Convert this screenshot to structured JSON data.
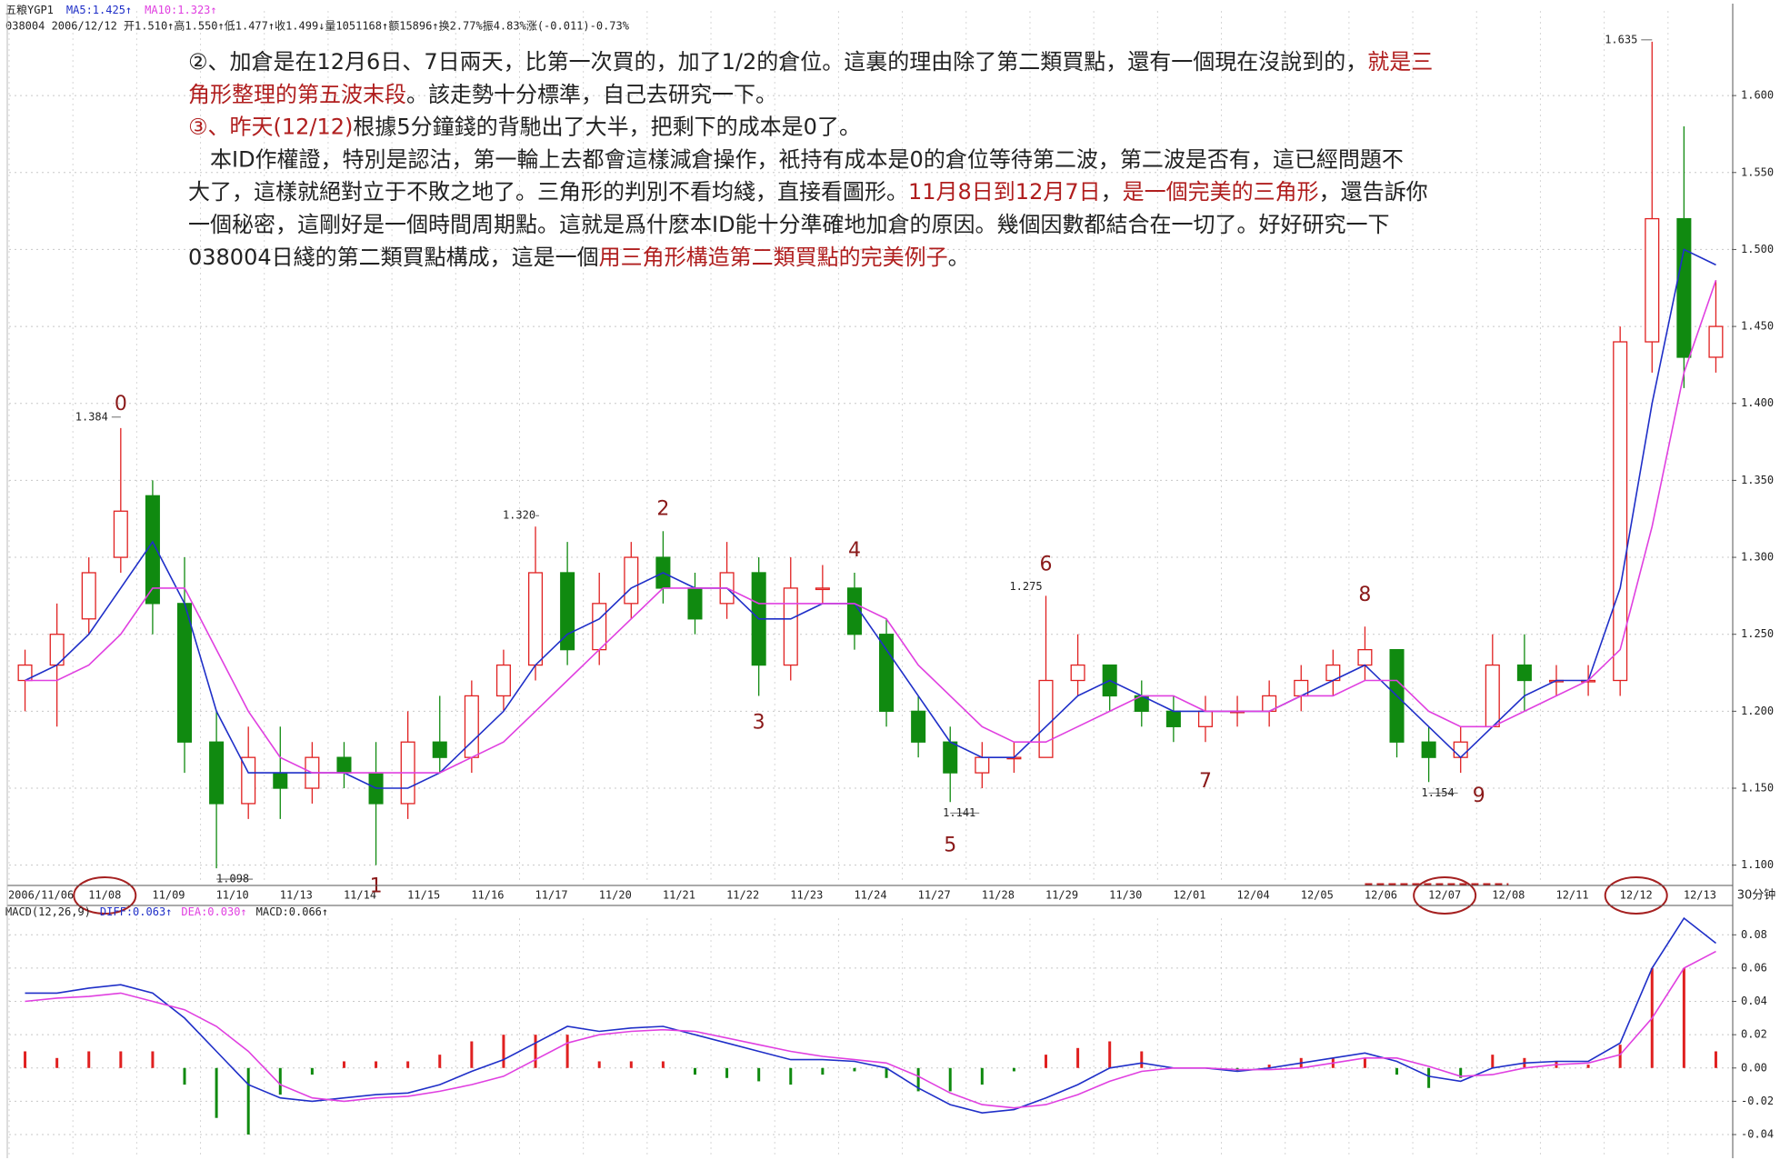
{
  "chart_data": [
    {
      "type": "candlestick",
      "title": "五粮YGP1",
      "info": "038004 2006/12/12 开1.510↑高1.550↑低1.477↑收1.499↓量1051168↑额15896↑换2.77%振4.83%涨(-0.011)-0.73%",
      "period": "30分钟",
      "up_color": "#e02020",
      "down_color": "#108a10",
      "categories": [
        "2006/11/06",
        null,
        "11/08",
        null,
        "11/09",
        null,
        "11/10",
        null,
        "11/13",
        null,
        "11/14",
        null,
        "11/15",
        null,
        "11/16",
        null,
        "11/17",
        null,
        "11/20",
        null,
        "11/21",
        null,
        "11/22",
        null,
        "11/23",
        null,
        "11/24",
        null,
        "11/27",
        null,
        "11/28",
        null,
        "11/29",
        null,
        "11/30",
        null,
        "12/01",
        null,
        "12/04",
        null,
        "12/05",
        null,
        "12/06",
        null,
        "12/07",
        null,
        "12/08",
        null,
        "12/11",
        null,
        "12/12",
        null,
        "12/13",
        null
      ],
      "open": [
        1.22,
        1.23,
        1.26,
        1.3,
        1.34,
        1.27,
        1.18,
        1.14,
        1.16,
        1.15,
        1.17,
        1.16,
        1.14,
        1.18,
        1.17,
        1.21,
        1.23,
        1.29,
        1.24,
        1.27,
        1.3,
        1.28,
        1.27,
        1.29,
        1.23,
        1.28,
        1.28,
        1.25,
        1.2,
        1.18,
        1.16,
        1.17,
        1.17,
        1.22,
        1.23,
        1.21,
        1.2,
        1.19,
        1.2,
        1.2,
        1.21,
        1.22,
        1.23,
        1.24,
        1.18,
        1.17,
        1.19,
        1.23,
        1.22,
        1.22,
        1.22,
        1.44,
        1.52,
        1.43
      ],
      "high": [
        1.24,
        1.27,
        1.3,
        1.384,
        1.35,
        1.3,
        1.2,
        1.19,
        1.19,
        1.18,
        1.18,
        1.18,
        1.2,
        1.21,
        1.22,
        1.24,
        1.32,
        1.31,
        1.29,
        1.31,
        1.317,
        1.29,
        1.31,
        1.3,
        1.3,
        1.295,
        1.29,
        1.26,
        1.21,
        1.19,
        1.18,
        1.18,
        1.275,
        1.25,
        1.23,
        1.22,
        1.21,
        1.21,
        1.21,
        1.22,
        1.23,
        1.24,
        1.255,
        1.24,
        1.19,
        1.19,
        1.25,
        1.25,
        1.23,
        1.23,
        1.45,
        1.635,
        1.58,
        1.48
      ],
      "low": [
        1.2,
        1.19,
        1.25,
        1.29,
        1.25,
        1.16,
        1.098,
        1.13,
        1.13,
        1.14,
        1.15,
        1.1,
        1.13,
        1.16,
        1.16,
        1.2,
        1.22,
        1.23,
        1.23,
        1.26,
        1.27,
        1.25,
        1.26,
        1.21,
        1.22,
        1.27,
        1.24,
        1.19,
        1.17,
        1.141,
        1.15,
        1.16,
        1.17,
        1.21,
        1.2,
        1.19,
        1.18,
        1.18,
        1.19,
        1.19,
        1.2,
        1.21,
        1.22,
        1.17,
        1.154,
        1.16,
        1.19,
        1.2,
        1.21,
        1.21,
        1.21,
        1.42,
        1.41,
        1.42
      ],
      "close": [
        1.23,
        1.25,
        1.29,
        1.33,
        1.27,
        1.18,
        1.14,
        1.17,
        1.15,
        1.17,
        1.16,
        1.14,
        1.18,
        1.17,
        1.21,
        1.23,
        1.29,
        1.24,
        1.27,
        1.3,
        1.28,
        1.26,
        1.29,
        1.23,
        1.28,
        1.28,
        1.25,
        1.2,
        1.18,
        1.16,
        1.17,
        1.17,
        1.22,
        1.23,
        1.21,
        1.2,
        1.19,
        1.2,
        1.2,
        1.21,
        1.22,
        1.23,
        1.24,
        1.18,
        1.17,
        1.18,
        1.23,
        1.22,
        1.22,
        1.22,
        1.44,
        1.52,
        1.43,
        1.45
      ],
      "series": [
        {
          "name": "MA5:1.425↑",
          "color": "#1f2fc8",
          "values": [
            1.22,
            1.23,
            1.25,
            1.28,
            1.31,
            1.27,
            1.2,
            1.16,
            1.16,
            1.16,
            1.16,
            1.15,
            1.15,
            1.16,
            1.18,
            1.2,
            1.23,
            1.25,
            1.26,
            1.28,
            1.29,
            1.28,
            1.28,
            1.26,
            1.26,
            1.27,
            1.27,
            1.24,
            1.21,
            1.18,
            1.17,
            1.17,
            1.19,
            1.21,
            1.22,
            1.21,
            1.2,
            1.2,
            1.2,
            1.2,
            1.21,
            1.22,
            1.23,
            1.21,
            1.19,
            1.17,
            1.19,
            1.21,
            1.22,
            1.22,
            1.28,
            1.4,
            1.5,
            1.49
          ]
        },
        {
          "name": "MA10:1.323↑",
          "color": "#e040e0",
          "values": [
            1.22,
            1.22,
            1.23,
            1.25,
            1.28,
            1.28,
            1.24,
            1.2,
            1.17,
            1.16,
            1.16,
            1.16,
            1.16,
            1.16,
            1.17,
            1.18,
            1.2,
            1.22,
            1.24,
            1.26,
            1.28,
            1.28,
            1.28,
            1.27,
            1.27,
            1.27,
            1.27,
            1.26,
            1.23,
            1.21,
            1.19,
            1.18,
            1.18,
            1.19,
            1.2,
            1.21,
            1.21,
            1.2,
            1.2,
            1.2,
            1.21,
            1.21,
            1.22,
            1.22,
            1.2,
            1.19,
            1.19,
            1.2,
            1.21,
            1.22,
            1.24,
            1.32,
            1.42,
            1.48
          ]
        }
      ],
      "ylim": [
        1.088,
        1.655
      ],
      "yticks": [
        {
          "value": 1.1,
          "label": "1.100"
        },
        {
          "value": 1.15,
          "label": "1.150"
        },
        {
          "value": 1.2,
          "label": "1.200"
        },
        {
          "value": 1.25,
          "label": "1.250"
        },
        {
          "value": 1.3,
          "label": "1.300"
        },
        {
          "value": 1.35,
          "label": "1.350"
        },
        {
          "value": 1.4,
          "label": "1.400"
        },
        {
          "value": 1.45,
          "label": "1.450"
        },
        {
          "value": 1.5,
          "label": "1.500"
        },
        {
          "value": 1.55,
          "label": "1.550"
        },
        {
          "value": 1.6,
          "label": "1.600"
        }
      ],
      "grid": true,
      "wave_labels": [
        "0",
        "1",
        "2",
        "3",
        "4",
        "5",
        "6",
        "7",
        "8",
        "9"
      ],
      "extreme_labels": [
        "1.384",
        "1.098",
        "1.320",
        "1.275",
        "1.141",
        "1.154",
        "1.635"
      ]
    },
    {
      "type": "macd",
      "title": "MACD(12,26,9)",
      "series": [
        {
          "name": "DIFF:0.063↑",
          "color": "#1f2fc8",
          "values": [
            0.045,
            0.045,
            0.048,
            0.05,
            0.045,
            0.03,
            0.01,
            -0.01,
            -0.018,
            -0.02,
            -0.018,
            -0.016,
            -0.015,
            -0.01,
            -0.002,
            0.005,
            0.015,
            0.025,
            0.022,
            0.024,
            0.025,
            0.02,
            0.015,
            0.01,
            0.005,
            0.005,
            0.004,
            0.0,
            -0.012,
            -0.022,
            -0.027,
            -0.025,
            -0.018,
            -0.01,
            0.0,
            0.003,
            0.0,
            0.0,
            -0.002,
            0.0,
            0.003,
            0.006,
            0.009,
            0.004,
            -0.005,
            -0.008,
            0.0,
            0.003,
            0.004,
            0.004,
            0.015,
            0.06,
            0.09,
            0.075
          ]
        },
        {
          "name": "DEA:0.030↑",
          "color": "#e040e0",
          "values": [
            0.04,
            0.042,
            0.043,
            0.045,
            0.04,
            0.035,
            0.025,
            0.01,
            -0.01,
            -0.018,
            -0.02,
            -0.018,
            -0.017,
            -0.014,
            -0.01,
            -0.005,
            0.005,
            0.015,
            0.02,
            0.022,
            0.023,
            0.022,
            0.018,
            0.014,
            0.01,
            0.007,
            0.005,
            0.003,
            -0.005,
            -0.015,
            -0.022,
            -0.024,
            -0.022,
            -0.016,
            -0.008,
            -0.002,
            0.0,
            0.0,
            -0.001,
            -0.001,
            0.0,
            0.003,
            0.006,
            0.006,
            0.001,
            -0.005,
            -0.004,
            0.0,
            0.002,
            0.003,
            0.008,
            0.03,
            0.06,
            0.07
          ]
        }
      ],
      "bars": {
        "name": "MACD:0.066↑",
        "up_color": "#e02020",
        "down_color": "#108a10",
        "values": [
          0.01,
          0.006,
          0.01,
          0.01,
          0.01,
          -0.01,
          -0.03,
          -0.04,
          -0.016,
          -0.004,
          0.004,
          0.004,
          0.004,
          0.008,
          0.016,
          0.02,
          0.02,
          0.02,
          0.004,
          0.004,
          0.004,
          -0.004,
          -0.006,
          -0.008,
          -0.01,
          -0.004,
          -0.002,
          -0.006,
          -0.014,
          -0.014,
          -0.01,
          -0.002,
          0.008,
          0.012,
          0.016,
          0.01,
          0.0,
          0.0,
          -0.002,
          0.002,
          0.006,
          0.006,
          0.006,
          -0.004,
          -0.012,
          -0.006,
          0.008,
          0.006,
          0.004,
          0.002,
          0.014,
          0.06,
          0.06,
          0.01
        ]
      },
      "ylim": [
        -0.052,
        0.09
      ],
      "yticks": [
        0.08,
        0.06,
        0.04,
        0.02,
        {
          "value": 0,
          "label": "0.00"
        },
        -0.02,
        -0.04
      ],
      "grid": true
    }
  ],
  "annotation": {
    "lines": [
      [
        {
          "text": "②、加倉是在12月6日、7日兩天，比第一次買的，加了1/2的倉位。這裏的理由除了第二類買點，還有一個現在沒說到的，",
          "color": "#222222"
        },
        {
          "text": "就是三",
          "color": "#b01e1e"
        }
      ],
      [
        {
          "text": "角形整理的第五波末段",
          "color": "#b01e1e"
        },
        {
          "text": "。該走勢十分標準，自己去研究一下。",
          "color": "#222222"
        }
      ],
      [
        {
          "text": "③、昨天(12/12)",
          "color": "#b01e1e"
        },
        {
          "text": "根據5分鐘錢的背馳出了大半，把剩下的成本是0了。",
          "color": "#222222"
        }
      ],
      [
        {
          "text": "　本ID作權證，特別是認沽，第一輪上去都會這樣減倉操作，衹持有成本是0的倉位等待第二波，第二波是否有，這已經問題不",
          "color": "#222222"
        }
      ],
      [
        {
          "text": "大了，這樣就絕對立于不敗之地了。三角形的判別不看均綫，直接看圖形。",
          "color": "#222222"
        },
        {
          "text": "11月8日到12月7日",
          "color": "#b01e1e"
        },
        {
          "text": "，",
          "color": "#222222"
        },
        {
          "text": "是一個完美的三角形",
          "color": "#b01e1e"
        },
        {
          "text": "，還告訴你",
          "color": "#222222"
        }
      ],
      [
        {
          "text": "一個秘密，這剛好是一個時間周期點。這就是爲什麽本ID能十分準確地加倉的原因。幾個因數都結合在一切了。好好研究一下",
          "color": "#222222"
        }
      ],
      [
        {
          "text": "038004日綫的第二類買點構成，這是一個",
          "color": "#222222"
        },
        {
          "text": "用三角形構造第二類買點的完美例子",
          "color": "#b01e1e"
        },
        {
          "text": "。",
          "color": "#222222"
        }
      ]
    ]
  }
}
